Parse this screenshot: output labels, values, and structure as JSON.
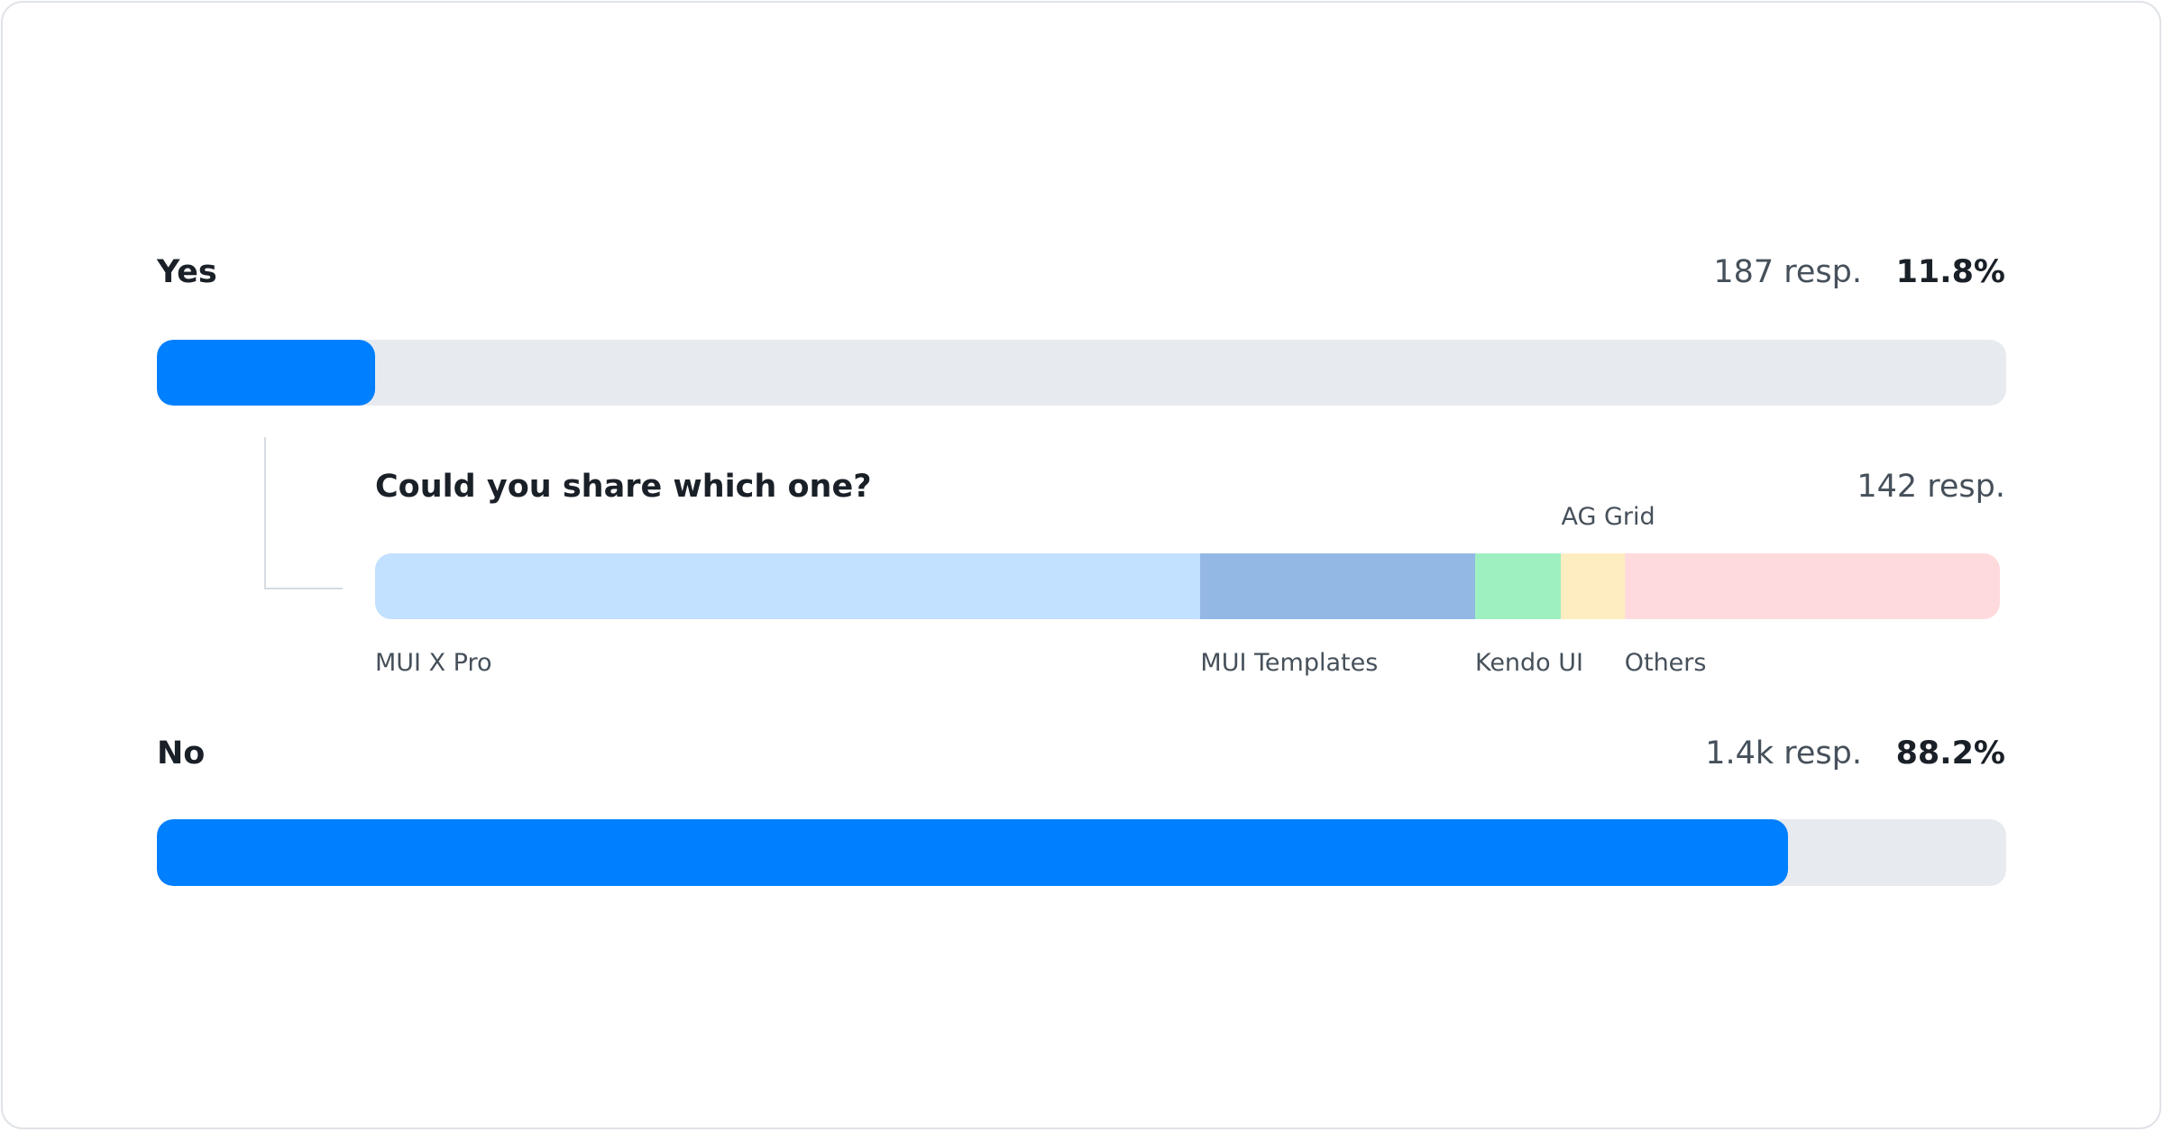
{
  "chart_data": [
    {
      "type": "bar",
      "orientation": "horizontal",
      "stacked": false,
      "categories": [
        "Yes",
        "No"
      ],
      "values": [
        11.8,
        88.2
      ],
      "value_labels": [
        "11.8%",
        "88.2%"
      ],
      "responses": [
        "187 resp.",
        "1.4k resp."
      ],
      "xlim": [
        0,
        100
      ],
      "colors": {
        "fill": "#007FFF",
        "track": "#E7EBF0"
      }
    },
    {
      "type": "bar",
      "orientation": "horizontal",
      "stacked": true,
      "title": "Could you share which one?",
      "responses": "142 resp.",
      "categories": [
        "MUI X Pro",
        "MUI Templates",
        "Kendo UI",
        "AG Grid",
        "Others"
      ],
      "values": [
        50.8,
        16.9,
        5.3,
        3.9,
        23.1
      ],
      "colors": [
        "#C2E0FF",
        "#94B8E4",
        "#9FF0C0",
        "#FFEDC2",
        "#FFDADD"
      ]
    }
  ]
}
